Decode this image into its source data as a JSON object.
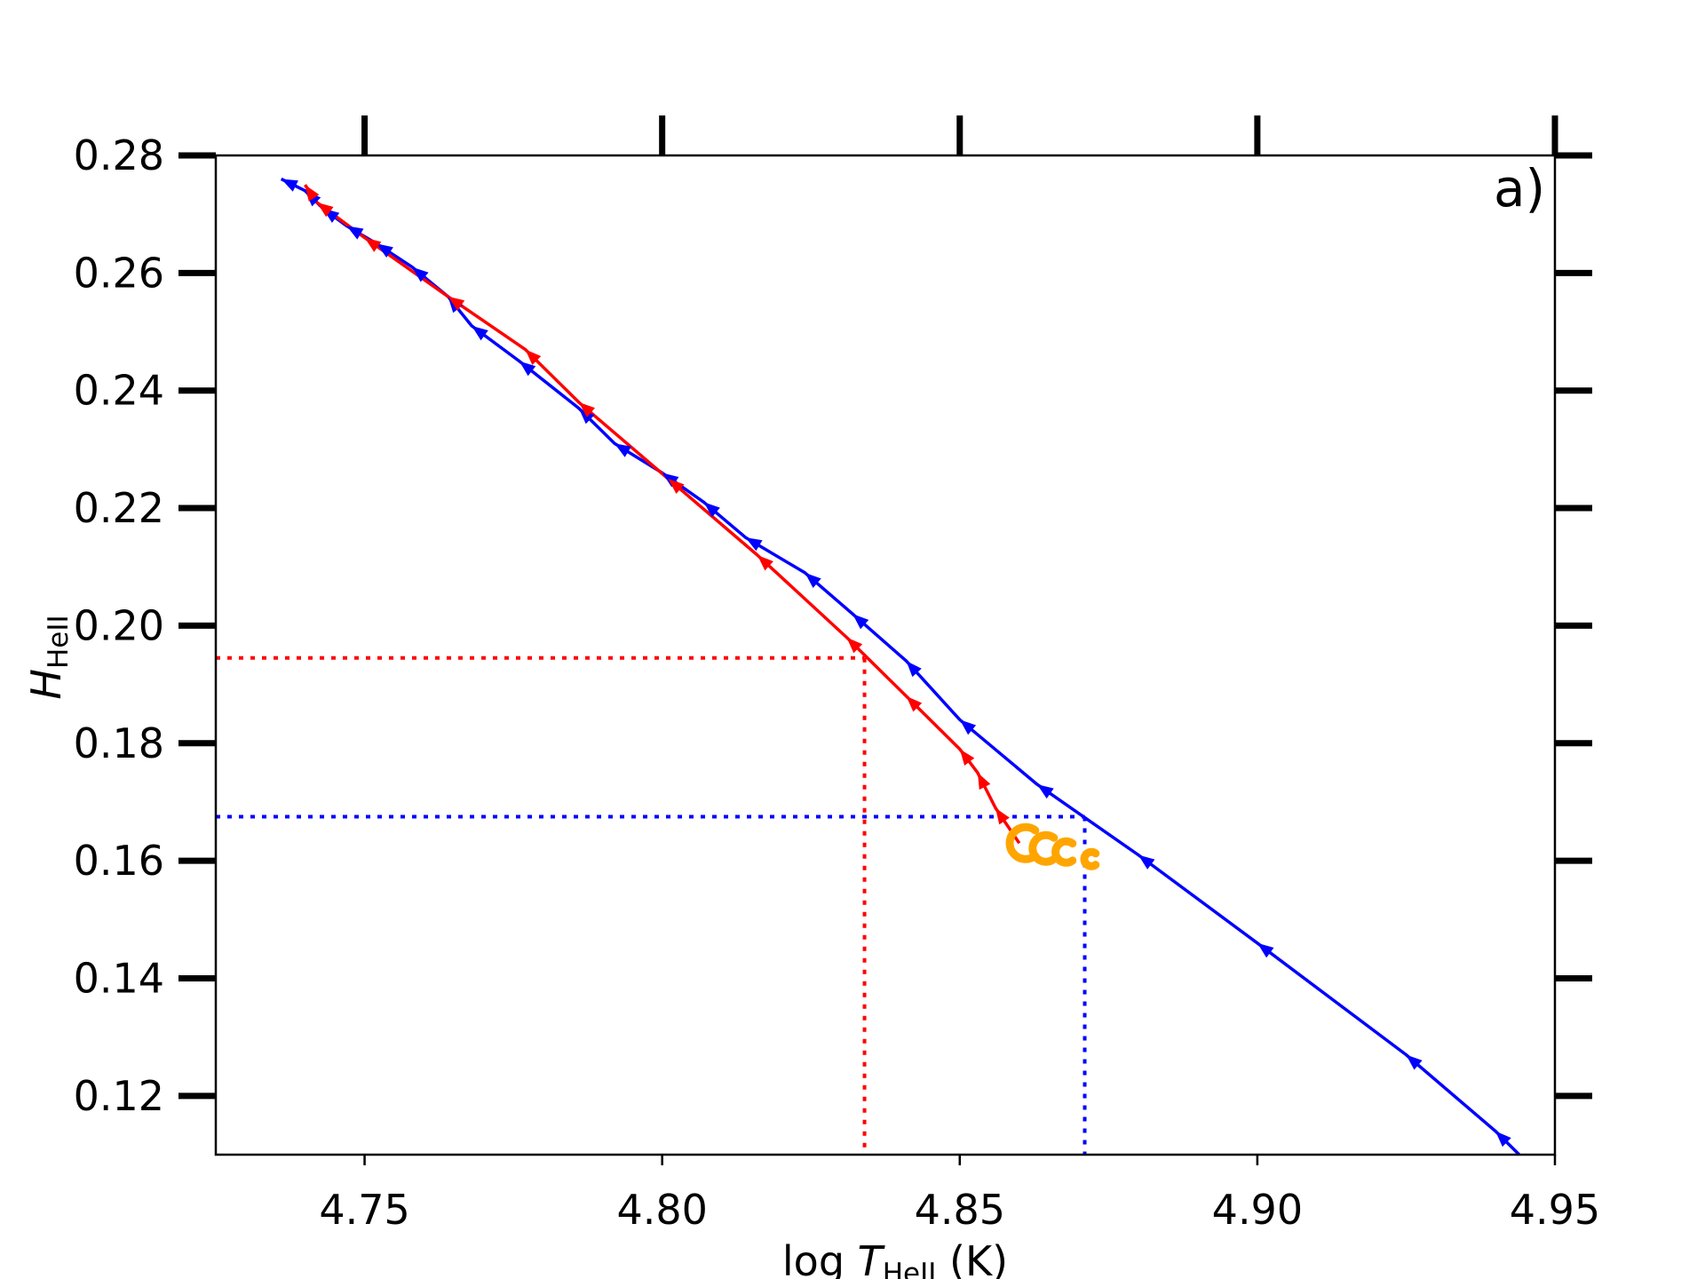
{
  "chart_data": {
    "type": "line",
    "panel_label": "a)",
    "xlabel": {
      "prefix": "log ",
      "var": "T",
      "sub": "HeII",
      "suffix": " (K)"
    },
    "ylabel": {
      "var": "H",
      "sub": "HeII"
    },
    "xlim": [
      4.725,
      4.95
    ],
    "ylim": [
      0.11,
      0.28
    ],
    "x_ticks": [
      4.75,
      4.8,
      4.85,
      4.9,
      4.95
    ],
    "x_tick_labels": [
      "4.75",
      "4.80",
      "4.85",
      "4.90",
      "4.95"
    ],
    "y_ticks": [
      0.12,
      0.14,
      0.16,
      0.18,
      0.2,
      0.22,
      0.24,
      0.26,
      0.28
    ],
    "y_tick_labels": [
      "0.12",
      "0.14",
      "0.16",
      "0.18",
      "0.20",
      "0.22",
      "0.24",
      "0.26",
      "0.28"
    ],
    "grid": false,
    "legend": "none",
    "series": [
      {
        "color": "#0000ff",
        "points": [
          [
            4.944,
            0.11
          ],
          [
            4.94,
            0.114
          ],
          [
            4.925,
            0.127
          ],
          [
            4.9,
            0.146
          ],
          [
            4.88,
            0.161
          ],
          [
            4.863,
            0.173
          ],
          [
            4.85,
            0.184
          ],
          [
            4.841,
            0.194
          ],
          [
            4.832,
            0.202
          ],
          [
            4.824,
            0.209
          ],
          [
            4.814,
            0.215
          ],
          [
            4.807,
            0.221
          ],
          [
            4.8,
            0.226
          ],
          [
            4.792,
            0.231
          ],
          [
            4.786,
            0.237
          ],
          [
            4.776,
            0.245
          ],
          [
            4.768,
            0.251
          ],
          [
            4.764,
            0.256
          ],
          [
            4.758,
            0.261
          ],
          [
            4.752,
            0.265
          ],
          [
            4.747,
            0.268
          ],
          [
            4.743,
            0.271
          ],
          [
            4.74,
            0.274
          ],
          [
            4.736,
            0.276
          ]
        ]
      },
      {
        "color": "#ff0000",
        "points": [
          [
            4.86,
            0.163
          ],
          [
            4.856,
            0.169
          ],
          [
            4.853,
            0.175
          ],
          [
            4.85,
            0.179
          ],
          [
            4.841,
            0.188
          ],
          [
            4.831,
            0.198
          ],
          [
            4.816,
            0.212
          ],
          [
            4.801,
            0.225
          ],
          [
            4.786,
            0.238
          ],
          [
            4.777,
            0.247
          ],
          [
            4.764,
            0.256
          ],
          [
            4.75,
            0.266
          ],
          [
            4.742,
            0.272
          ],
          [
            4.74,
            0.275
          ]
        ]
      }
    ],
    "reference_lines": [
      {
        "color": "#ff0000",
        "x": 4.834,
        "y": 0.1945
      },
      {
        "color": "#0000ff",
        "x": 4.871,
        "y": 0.1675
      }
    ],
    "markers": [
      {
        "color": "#ffa500",
        "x": 4.86,
        "y": 0.163
      }
    ]
  }
}
